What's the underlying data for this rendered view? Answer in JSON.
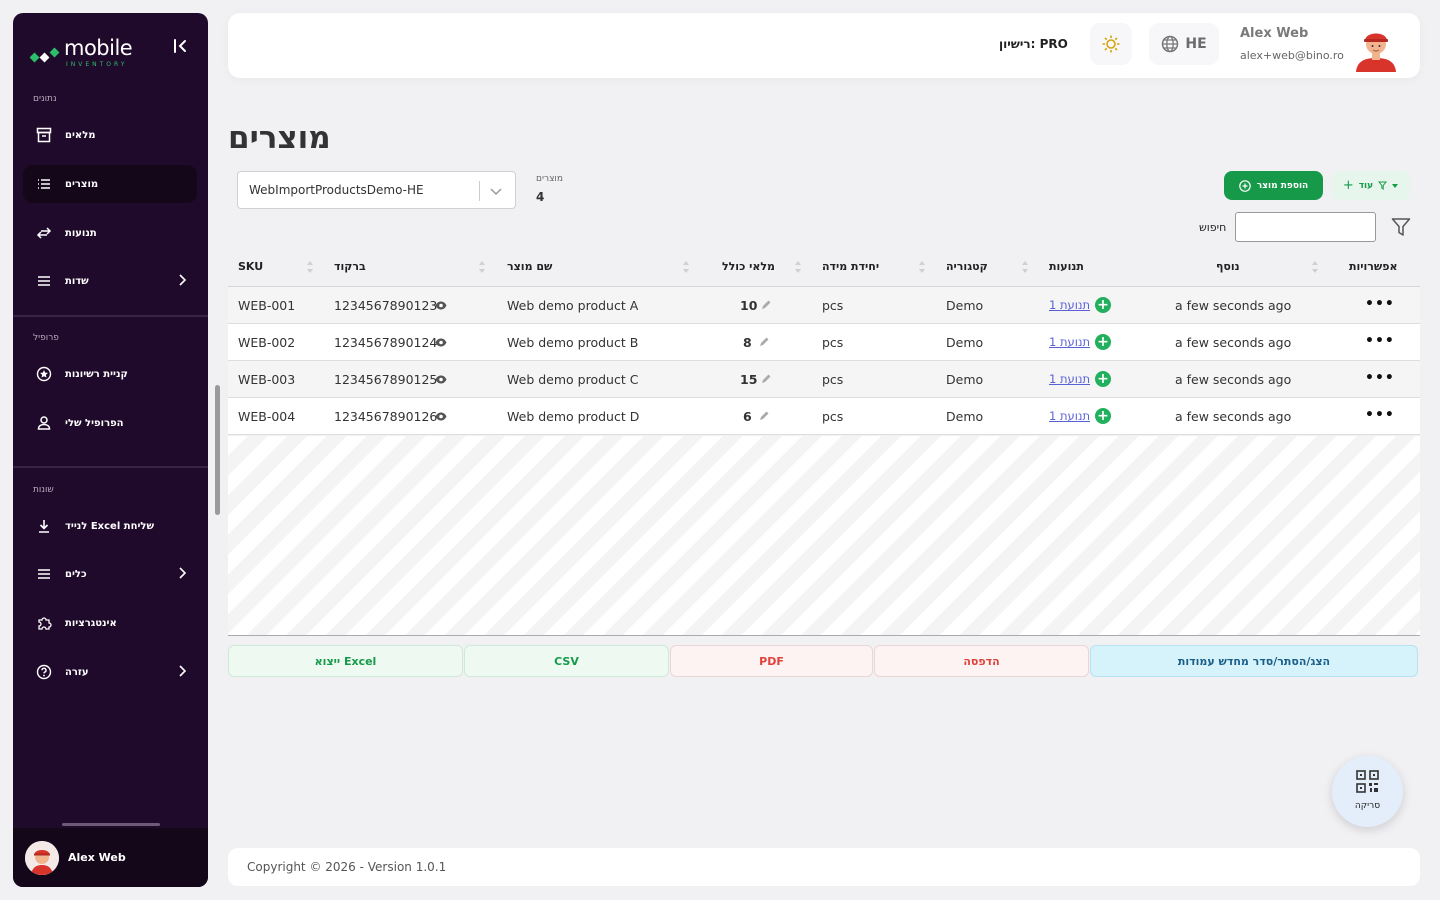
{
  "sidebar": {
    "brand": {
      "name": "mobile",
      "sub": "INVENTORY"
    },
    "sections": {
      "data": "נתונים",
      "profile": "פרופיל",
      "misc": "שונות"
    },
    "items": [
      {
        "label": "מלאים",
        "icon": "archive-icon"
      },
      {
        "label": "מוצרים",
        "icon": "list-icon",
        "active": true
      },
      {
        "label": "תנועות",
        "icon": "transfer-arrows-icon"
      },
      {
        "label": "שדות",
        "icon": "menu-icon",
        "has_children": true
      },
      {
        "label": "קניית רשיונות",
        "icon": "license-star-icon"
      },
      {
        "label": "הפרופיל שלי",
        "icon": "user-icon"
      },
      {
        "label": "לנייד Excel שליחת",
        "icon": "download-icon"
      },
      {
        "label": "כלים",
        "icon": "menu-icon",
        "has_children": true
      },
      {
        "label": "אינטגרציות",
        "icon": "puzzle-icon"
      },
      {
        "label": "עזרה",
        "icon": "help-icon",
        "has_children": true
      }
    ],
    "user_name": "Alex Web"
  },
  "header": {
    "plan": "רישיון: PRO",
    "language": "HE",
    "user_name": "Alex Web",
    "user_email": "alex+web@bino.ro"
  },
  "page": {
    "title": "מוצרים",
    "warehouse": "WebImportProductsDemo-HE",
    "count_label": "מוצרים",
    "count_value": "4",
    "add_label": "הוספת מוצר",
    "more_label": "עוד",
    "search_label": "חיפוש",
    "search_value": ""
  },
  "table": {
    "columns": [
      "SKU",
      "ברקוד",
      "שם מוצר",
      "מלאי כולל",
      "יחידת מידה",
      "קטגוריה",
      "תנועות",
      "נוסף",
      "אפשרויות"
    ],
    "rows": [
      {
        "sku": "WEB-001",
        "barcode": "1234567890123",
        "name": "Web demo product A",
        "qty": "10",
        "unit": "pcs",
        "category": "Demo",
        "movements": "1 תנועת",
        "added": "a few seconds ago"
      },
      {
        "sku": "WEB-002",
        "barcode": "1234567890124",
        "name": "Web demo product B",
        "qty": "8",
        "unit": "pcs",
        "category": "Demo",
        "movements": "1 תנועת",
        "added": "a few seconds ago"
      },
      {
        "sku": "WEB-003",
        "barcode": "1234567890125",
        "name": "Web demo product C",
        "qty": "15",
        "unit": "pcs",
        "category": "Demo",
        "movements": "1 תנועת",
        "added": "a few seconds ago"
      },
      {
        "sku": "WEB-004",
        "barcode": "1234567890126",
        "name": "Web demo product D",
        "qty": "6",
        "unit": "pcs",
        "category": "Demo",
        "movements": "1 תנועת",
        "added": "a few seconds ago"
      }
    ]
  },
  "export": {
    "excel": "ייצוא Excel",
    "csv": "CSV",
    "pdf": "PDF",
    "print": "הדפסה",
    "columns": "הצג/הסתר/סדר מחדש עמודות"
  },
  "scan_label": "סריקה",
  "footer": "Copyright © 2026 - Version 1.0.1",
  "colors": {
    "sidebar_bg": "#200a2b",
    "accent_green": "#169949",
    "link": "#5a5fd6",
    "danger": "#e0413a"
  }
}
